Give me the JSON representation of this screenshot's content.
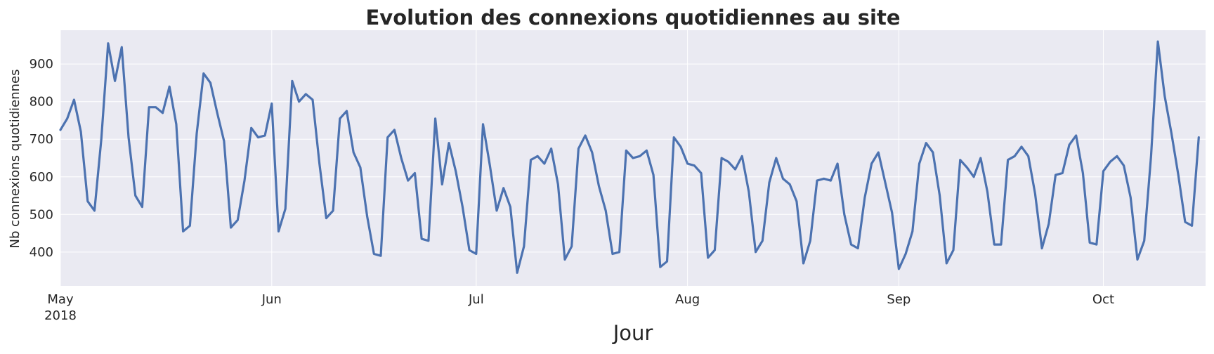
{
  "chart_data": {
    "type": "line",
    "title": "Evolution des connexions quotidiennes au site",
    "xlabel": "Jour",
    "ylabel": "Nb connexions quotidiennes",
    "x_start": "2018-05-01",
    "x_end": "2018-10-16",
    "ylim": [
      310,
      990
    ],
    "yticks": [
      400,
      500,
      600,
      700,
      800,
      900
    ],
    "xticks": [
      {
        "date": "2018-05-01",
        "label": "May",
        "sublabel": "2018"
      },
      {
        "date": "2018-06-01",
        "label": "Jun",
        "sublabel": ""
      },
      {
        "date": "2018-07-01",
        "label": "Jul",
        "sublabel": ""
      },
      {
        "date": "2018-08-01",
        "label": "Aug",
        "sublabel": ""
      },
      {
        "date": "2018-09-01",
        "label": "Sep",
        "sublabel": ""
      },
      {
        "date": "2018-10-01",
        "label": "Oct",
        "sublabel": ""
      }
    ],
    "grid": true,
    "colors": {
      "line": "#4c72b0",
      "plot_bg": "#eaeaf2",
      "grid": "#ffffff",
      "text": "#262626"
    },
    "series": [
      {
        "name": "",
        "values": [
          725,
          755,
          805,
          720,
          535,
          510,
          700,
          955,
          855,
          945,
          705,
          550,
          520,
          785,
          785,
          770,
          840,
          740,
          455,
          470,
          715,
          875,
          850,
          770,
          695,
          465,
          485,
          590,
          730,
          705,
          710,
          795,
          455,
          515,
          855,
          800,
          820,
          805,
          635,
          490,
          510,
          755,
          775,
          665,
          625,
          495,
          395,
          390,
          705,
          725,
          650,
          590,
          610,
          435,
          430,
          755,
          580,
          690,
          615,
          520,
          405,
          395,
          740,
          630,
          510,
          570,
          520,
          345,
          415,
          645,
          655,
          635,
          675,
          580,
          380,
          415,
          675,
          710,
          665,
          575,
          510,
          395,
          400,
          670,
          650,
          655,
          670,
          605,
          360,
          375,
          705,
          680,
          635,
          630,
          610,
          385,
          405,
          650,
          640,
          620,
          655,
          560,
          400,
          430,
          585,
          650,
          595,
          580,
          535,
          370,
          430,
          590,
          595,
          590,
          635,
          500,
          420,
          410,
          545,
          635,
          665,
          585,
          505,
          355,
          395,
          455,
          635,
          690,
          665,
          550,
          370,
          405,
          645,
          625,
          600,
          650,
          560,
          420,
          420,
          645,
          655,
          680,
          655,
          555,
          410,
          475,
          605,
          610,
          685,
          710,
          610,
          425,
          420,
          615,
          640,
          655,
          630,
          545,
          380,
          430,
          655,
          960,
          815,
          715,
          605,
          480,
          470,
          705
        ]
      }
    ]
  }
}
